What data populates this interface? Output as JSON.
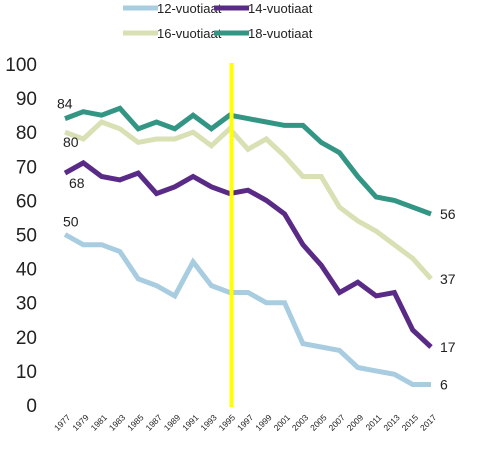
{
  "chart_data": {
    "type": "line",
    "x": [
      1977,
      1979,
      1981,
      1983,
      1985,
      1987,
      1989,
      1991,
      1993,
      1995,
      1997,
      1999,
      2001,
      2003,
      2005,
      2007,
      2009,
      2011,
      2013,
      2015,
      2017
    ],
    "x_ticks": [
      "1977",
      "1979",
      "1981",
      "1983",
      "1985",
      "1987",
      "1989",
      "1991",
      "1993",
      "1995",
      "1997",
      "1999",
      "2001",
      "2003",
      "2005",
      "2007",
      "2009",
      "2011",
      "2013",
      "2015",
      "2017"
    ],
    "y_ticks": [
      "0",
      "10",
      "20",
      "30",
      "40",
      "50",
      "60",
      "70",
      "80",
      "90",
      "100"
    ],
    "ylim": [
      0,
      100
    ],
    "grid": false,
    "legend_position": "top",
    "reference_line": {
      "x": 1995.2,
      "color": "#ffff00"
    },
    "series": [
      {
        "name": "12-vuotiaat",
        "color": "#a9cde0",
        "values": [
          50,
          47,
          47,
          45,
          37,
          35,
          32,
          42,
          35,
          33,
          33,
          30,
          30,
          18,
          17,
          16,
          11,
          10,
          9,
          6,
          6
        ],
        "start_label": "50",
        "end_label": "6"
      },
      {
        "name": "14-vuotiaat",
        "color": "#5a2b86",
        "values": [
          68,
          71,
          67,
          66,
          68,
          62,
          64,
          67,
          64,
          62,
          63,
          60,
          56,
          47,
          41,
          33,
          36,
          32,
          33,
          22,
          17
        ],
        "start_label": "68",
        "end_label": "17"
      },
      {
        "name": "16-vuotiaat",
        "color": "#d8e0b4",
        "values": [
          80,
          78,
          83,
          81,
          77,
          78,
          78,
          80,
          76,
          81,
          75,
          78,
          73,
          67,
          67,
          58,
          54,
          51,
          47,
          43,
          37
        ],
        "start_label": "80",
        "end_label": "37"
      },
      {
        "name": "18-vuotiaat",
        "color": "#339685",
        "values": [
          84,
          86,
          85,
          87,
          81,
          83,
          81,
          85,
          81,
          85,
          84,
          83,
          82,
          82,
          77,
          74,
          67,
          61,
          60,
          58,
          56
        ],
        "start_label": "84",
        "end_label": "56"
      }
    ]
  }
}
